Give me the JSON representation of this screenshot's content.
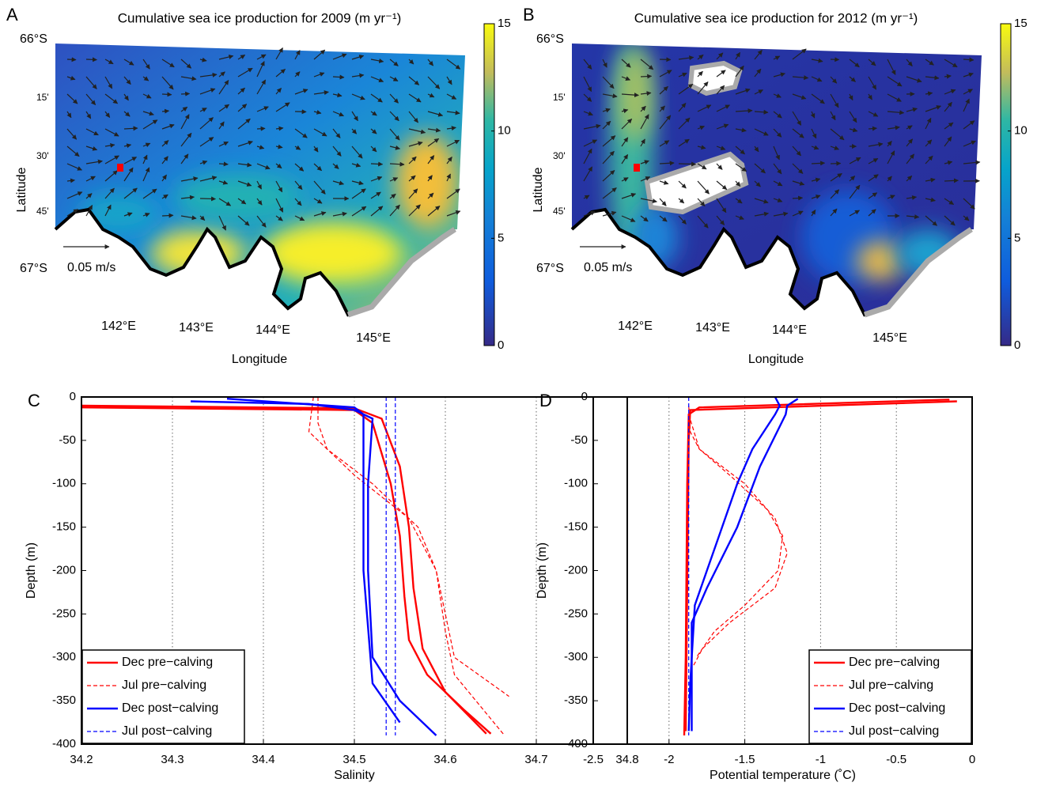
{
  "chart_data": [
    {
      "type": "map",
      "panel": "A",
      "title": "Cumulative sea ice production for 2009 (m yr⁻¹)",
      "xlabel": "Longitude",
      "ylabel": "Latitude",
      "lat_labels": [
        "66°S",
        "15'",
        "30'",
        "45'",
        "67°S"
      ],
      "lon_labels": [
        "142°E",
        "143°E",
        "144°E",
        "145°E"
      ],
      "scale_label": "0.05 m/s",
      "clim": [
        0,
        15
      ],
      "cticks": [
        0,
        5,
        10,
        15
      ]
    },
    {
      "type": "map",
      "panel": "B",
      "title": "Cumulative sea ice production for 2012 (m yr⁻¹)",
      "xlabel": "Longitude",
      "ylabel": "Latitude",
      "lat_labels": [
        "66°S",
        "15'",
        "30'",
        "45'",
        "67°S"
      ],
      "lon_labels": [
        "142°E",
        "143°E",
        "144°E",
        "145°E"
      ],
      "scale_label": "0.05 m/s",
      "clim": [
        0,
        15
      ],
      "cticks": [
        0,
        5,
        10,
        15
      ]
    },
    {
      "type": "line",
      "panel": "C",
      "xlabel": "Salinity",
      "ylabel": "Depth (m)",
      "xlim": [
        34.2,
        34.8
      ],
      "xticks": [
        34.2,
        34.3,
        34.4,
        34.5,
        34.6,
        34.7,
        34.8
      ],
      "ylim": [
        -400,
        0
      ],
      "yticks": [
        0,
        -50,
        -100,
        -150,
        -200,
        -250,
        -300,
        -350,
        -400
      ],
      "grid": "x",
      "legend": "lower left",
      "series": [
        {
          "name": "Dec pre−calving",
          "color": "#ff0000",
          "style": "solid",
          "profiles": [
            {
              "x": [
                34.2,
                34.5,
                34.53,
                34.55,
                34.56,
                34.565,
                34.575,
                34.6,
                34.645
              ],
              "y": [
                -10,
                -13,
                -25,
                -80,
                -150,
                -220,
                -290,
                -340,
                -388
              ]
            },
            {
              "x": [
                34.2,
                34.5,
                34.52,
                34.54,
                34.55,
                34.555,
                34.56,
                34.58,
                34.62,
                34.65
              ],
              "y": [
                -12,
                -15,
                -30,
                -100,
                -160,
                -230,
                -280,
                -320,
                -360,
                -388
              ]
            }
          ]
        },
        {
          "name": "Jul pre−calving",
          "color": "#ff0000",
          "style": "dashed",
          "profiles": [
            {
              "x": [
                34.46,
                34.46,
                34.47,
                34.52,
                34.57,
                34.59,
                34.6,
                34.61,
                34.67
              ],
              "y": [
                0,
                -30,
                -60,
                -100,
                -150,
                -200,
                -250,
                -300,
                -345
              ]
            },
            {
              "x": [
                34.455,
                34.45,
                34.5,
                34.56,
                34.59,
                34.6,
                34.61,
                34.665
              ],
              "y": [
                0,
                -40,
                -90,
                -140,
                -200,
                -270,
                -320,
                -390
              ]
            }
          ]
        },
        {
          "name": "Dec post−calving",
          "color": "#0000ff",
          "style": "solid",
          "profiles": [
            {
              "x": [
                34.32,
                34.45,
                34.5,
                34.52,
                34.515,
                34.515,
                34.52,
                34.55,
                34.59
              ],
              "y": [
                -5,
                -8,
                -15,
                -25,
                -100,
                -200,
                -300,
                -350,
                -390
              ]
            },
            {
              "x": [
                34.36,
                34.5,
                34.51,
                34.51,
                34.52,
                34.54,
                34.55
              ],
              "y": [
                -2,
                -12,
                -20,
                -200,
                -330,
                -360,
                -375
              ]
            }
          ]
        },
        {
          "name": "Jul post−calving",
          "color": "#0000ff",
          "style": "dashed",
          "profiles": [
            {
              "x": [
                34.535,
                34.535
              ],
              "y": [
                0,
                -390
              ]
            },
            {
              "x": [
                34.545,
                34.545
              ],
              "y": [
                0,
                -390
              ]
            }
          ]
        }
      ]
    },
    {
      "type": "line",
      "panel": "D",
      "xlabel": "Potential temperature  (˚C)",
      "ylabel": "Depth (m)",
      "xlim": [
        -2.5,
        0
      ],
      "xticks": [
        -2.5,
        -2,
        -1.5,
        -1,
        -0.5,
        0
      ],
      "ylim": [
        -400,
        0
      ],
      "yticks": [
        0,
        -50,
        -100,
        -150,
        -200,
        -250,
        -300,
        -350,
        -400
      ],
      "grid": "x",
      "legend": "lower right",
      "series": [
        {
          "name": "Dec pre−calving",
          "color": "#ff0000",
          "style": "solid",
          "profiles": [
            {
              "x": [
                -0.15,
                -1.8,
                -1.87,
                -1.88,
                -1.89,
                -1.9
              ],
              "y": [
                -3,
                -12,
                -20,
                -100,
                -300,
                -390
              ]
            },
            {
              "x": [
                -0.1,
                -1.86,
                -1.87,
                -1.89
              ],
              "y": [
                -5,
                -15,
                -50,
                -385
              ]
            }
          ]
        },
        {
          "name": "Jul pre−calving",
          "color": "#ff0000",
          "style": "dashed",
          "profiles": [
            {
              "x": [
                -1.87,
                -1.86,
                -1.8,
                -1.6,
                -1.35,
                -1.25,
                -1.28,
                -1.5,
                -1.7,
                -1.82
              ],
              "y": [
                -10,
                -40,
                -60,
                -90,
                -130,
                -160,
                -200,
                -240,
                -270,
                -300
              ]
            },
            {
              "x": [
                -1.87,
                -1.8,
                -1.5,
                -1.3,
                -1.22,
                -1.3,
                -1.6,
                -1.78,
                -1.84
              ],
              "y": [
                -20,
                -60,
                -100,
                -140,
                -180,
                -220,
                -260,
                -290,
                -310
              ]
            }
          ]
        },
        {
          "name": "Dec post−calving",
          "color": "#0000ff",
          "style": "solid",
          "profiles": [
            {
              "x": [
                -1.3,
                -1.27,
                -1.3,
                -1.45,
                -1.55,
                -1.65,
                -1.75,
                -1.83,
                -1.86,
                -1.87
              ],
              "y": [
                0,
                -10,
                -20,
                -60,
                -100,
                -150,
                -200,
                -240,
                -330,
                -385
              ]
            },
            {
              "x": [
                -1.15,
                -1.22,
                -1.23,
                -1.4,
                -1.55,
                -1.75,
                -1.85,
                -1.85
              ],
              "y": [
                -2,
                -10,
                -20,
                -80,
                -150,
                -220,
                -260,
                -385
              ]
            }
          ]
        },
        {
          "name": "Jul post−calving",
          "color": "#0000ff",
          "style": "dashed",
          "profiles": [
            {
              "x": [
                -1.87,
                -1.87
              ],
              "y": [
                0,
                -390
              ]
            }
          ]
        }
      ]
    }
  ]
}
